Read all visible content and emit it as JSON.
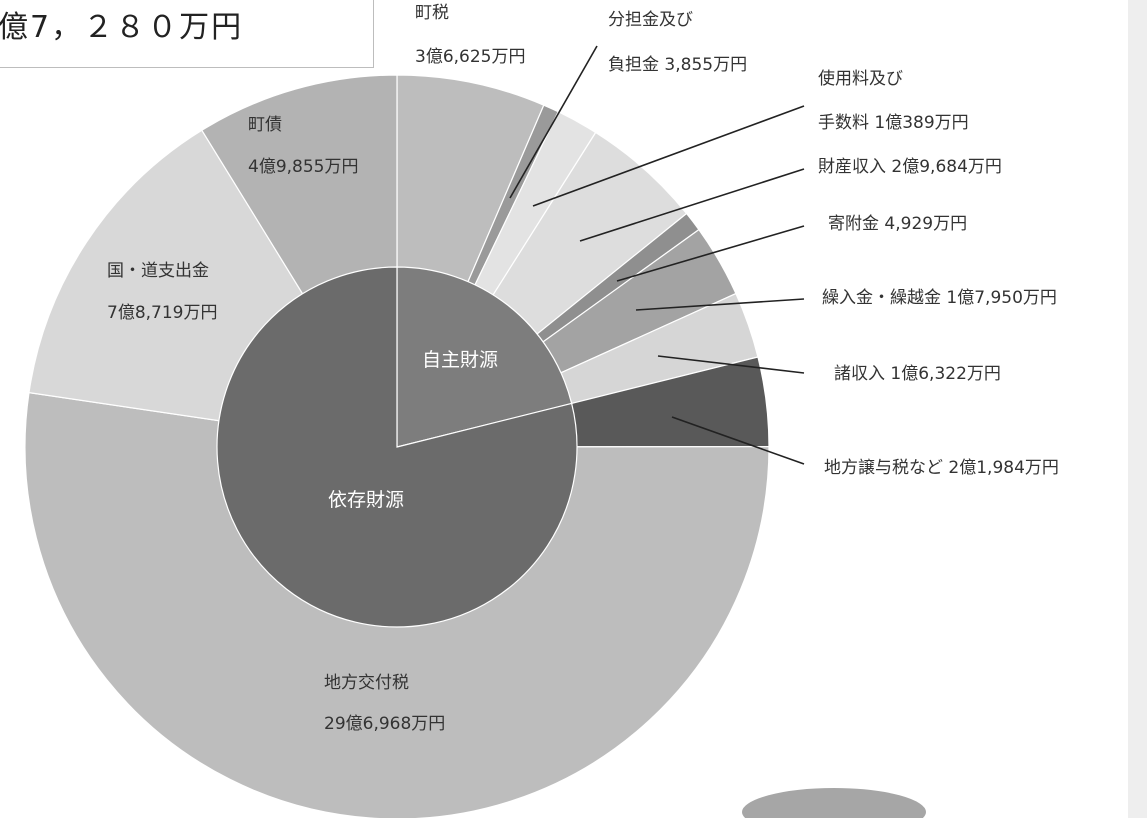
{
  "total_label": "億7，２８０万円",
  "chart_data": {
    "type": "pie",
    "colors": {
      "outer_base": "#bdbdbd",
      "inner_dependent": "#6b6b6b",
      "inner_own": "#7d7d7d",
      "leader": "#222222",
      "slice_border": "#ffffff"
    },
    "inner": [
      {
        "label": "自主財源",
        "slices": [
          "town_tax",
          "bunkatsu",
          "shiyoryo",
          "zaisan",
          "kifu",
          "kurikoshi",
          "shoshunyu"
        ]
      },
      {
        "label": "依存財源",
        "slices": [
          "jouyo",
          "kofu",
          "kokudo",
          "chosai"
        ]
      }
    ],
    "outer": [
      {
        "key": "town_tax",
        "name": "町税",
        "value": "3億6,625万円",
        "amount": 36625,
        "color": "#bdbdbd"
      },
      {
        "key": "bunkatsu",
        "name": "分担金及び",
        "name2": "負担金",
        "value": "3,855万円",
        "amount": 3855,
        "color": "#9a9a9a"
      },
      {
        "key": "shiyoryo",
        "name": "使用料及び",
        "name2": "手数料",
        "value": "1億389万円",
        "amount": 10389,
        "color": "#e3e3e3"
      },
      {
        "key": "zaisan",
        "name": "財産収入",
        "value": "2億9,684万円",
        "amount": 29684,
        "color": "#dddddd"
      },
      {
        "key": "kifu",
        "name": "寄附金",
        "value": "4,929万円",
        "amount": 4929,
        "color": "#8f8f8f"
      },
      {
        "key": "kurikoshi",
        "name": "繰入金・繰越金",
        "value": "1億7,950万円",
        "amount": 17950,
        "color": "#a3a3a3"
      },
      {
        "key": "shoshunyu",
        "name": "諸収入",
        "value": "1億6,322万円",
        "amount": 16322,
        "color": "#d6d6d6"
      },
      {
        "key": "jouyo",
        "name": "地方譲与税など",
        "value": "2億1,984万円",
        "amount": 21984,
        "color": "#595959"
      },
      {
        "key": "kofu",
        "name": "地方交付税",
        "value": "29億6,968万円",
        "amount": 296968,
        "color": "#bdbdbd"
      },
      {
        "key": "kokudo",
        "name": "国・道支出金",
        "value": "7億8,719万円",
        "amount": 78719,
        "color": "#d8d8d8"
      },
      {
        "key": "chosai",
        "name": "町債",
        "value": "4億9,855万円",
        "amount": 49855,
        "color": "#b3b3b3"
      }
    ]
  }
}
